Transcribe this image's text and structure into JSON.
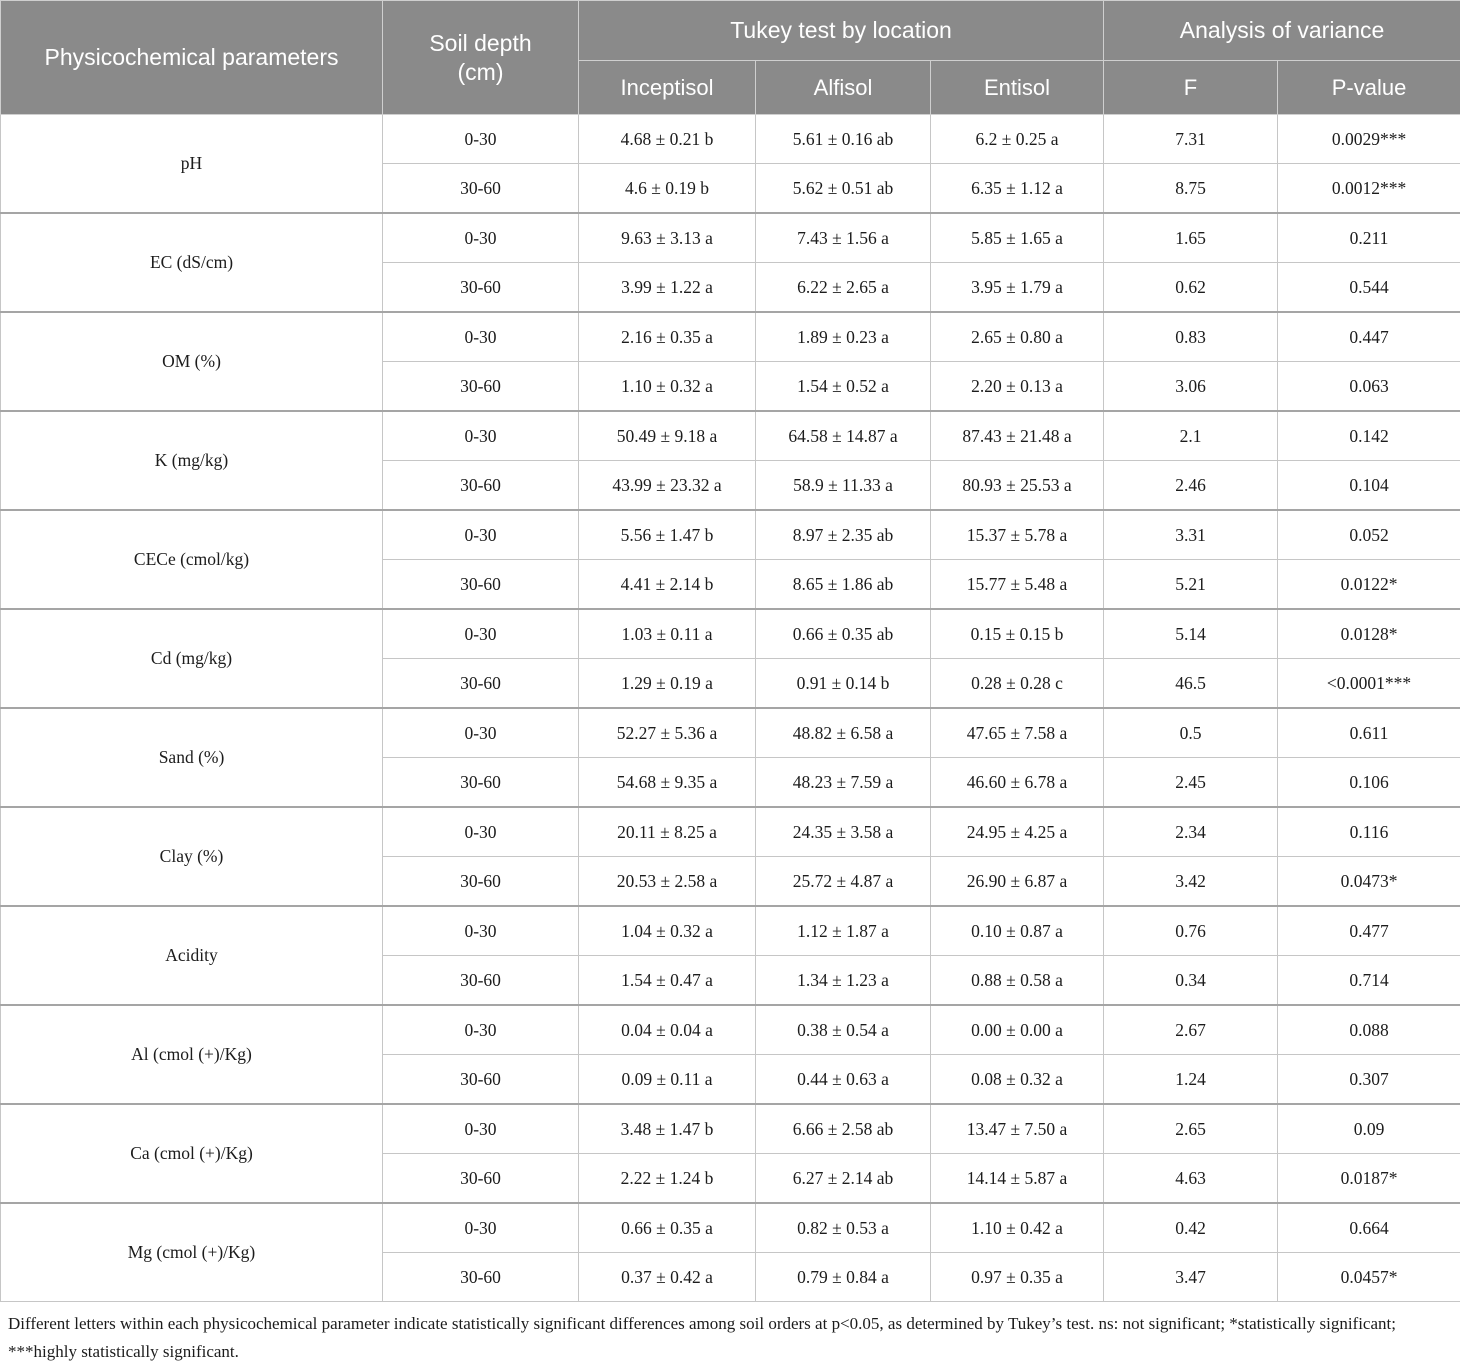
{
  "colors": {
    "header_bg": "#8a8a8a",
    "header_text": "#ffffff",
    "body_text": "#1c1c1c",
    "border_light": "#c6c6c6",
    "border_group": "#a5a5a5"
  },
  "table": {
    "header": {
      "parameters_label": "Physicochemical parameters",
      "soil_depth_label": "Soil depth (cm)",
      "tukey_group_label": "Tukey test by location",
      "anova_group_label": "Analysis of variance",
      "subcolumns": [
        "Inceptisol",
        "Alfisol",
        "Entisol",
        "F",
        "P-value"
      ]
    },
    "groups": [
      {
        "parameter": "pH",
        "rows": [
          {
            "depth": "0-30",
            "values": [
              "4.68 ± 0.21 b",
              "5.61 ± 0.16 ab",
              "6.2 ± 0.25 a",
              "7.31",
              "0.0029***"
            ]
          },
          {
            "depth": "30-60",
            "values": [
              "4.6 ± 0.19 b",
              "5.62 ± 0.51 ab",
              "6.35 ± 1.12 a",
              "8.75",
              "0.0012***"
            ]
          }
        ]
      },
      {
        "parameter": "EC (dS/cm)",
        "rows": [
          {
            "depth": "0-30",
            "values": [
              "9.63 ± 3.13 a",
              "7.43 ± 1.56 a",
              "5.85 ± 1.65 a",
              "1.65",
              "0.211"
            ]
          },
          {
            "depth": "30-60",
            "values": [
              "3.99 ± 1.22 a",
              "6.22 ± 2.65 a",
              "3.95 ± 1.79 a",
              "0.62",
              "0.544"
            ]
          }
        ]
      },
      {
        "parameter": "OM (%)",
        "rows": [
          {
            "depth": "0-30",
            "values": [
              "2.16 ± 0.35 a",
              "1.89 ± 0.23 a",
              "2.65 ± 0.80 a",
              "0.83",
              "0.447"
            ]
          },
          {
            "depth": "30-60",
            "values": [
              "1.10 ± 0.32 a",
              "1.54 ± 0.52 a",
              "2.20 ± 0.13 a",
              "3.06",
              "0.063"
            ]
          }
        ]
      },
      {
        "parameter": "K (mg/kg)",
        "rows": [
          {
            "depth": "0-30",
            "values": [
              "50.49 ± 9.18 a",
              "64.58 ± 14.87 a",
              "87.43 ± 21.48 a",
              "2.1",
              "0.142"
            ]
          },
          {
            "depth": "30-60",
            "values": [
              "43.99 ± 23.32 a",
              "58.9 ± 11.33 a",
              "80.93 ± 25.53 a",
              "2.46",
              "0.104"
            ]
          }
        ]
      },
      {
        "parameter": "CECe (cmol/kg)",
        "rows": [
          {
            "depth": "0-30",
            "values": [
              "5.56 ± 1.47 b",
              "8.97 ± 2.35 ab",
              "15.37 ± 5.78 a",
              "3.31",
              "0.052"
            ]
          },
          {
            "depth": "30-60",
            "values": [
              "4.41 ± 2.14 b",
              "8.65 ± 1.86 ab",
              "15.77 ± 5.48 a",
              "5.21",
              "0.0122*"
            ]
          }
        ]
      },
      {
        "parameter": "Cd (mg/kg)",
        "rows": [
          {
            "depth": "0-30",
            "values": [
              "1.03 ± 0.11 a",
              "0.66 ± 0.35 ab",
              "0.15 ± 0.15 b",
              "5.14",
              "0.0128*"
            ]
          },
          {
            "depth": "30-60",
            "values": [
              "1.29 ± 0.19 a",
              "0.91 ± 0.14 b",
              "0.28 ± 0.28 c",
              "46.5",
              "<0.0001***"
            ]
          }
        ]
      },
      {
        "parameter": "Sand (%)",
        "rows": [
          {
            "depth": "0-30",
            "values": [
              "52.27 ± 5.36 a",
              "48.82 ± 6.58 a",
              "47.65 ± 7.58 a",
              "0.5",
              "0.611"
            ]
          },
          {
            "depth": "30-60",
            "values": [
              "54.68 ± 9.35 a",
              "48.23 ± 7.59 a",
              "46.60 ± 6.78 a",
              "2.45",
              "0.106"
            ]
          }
        ]
      },
      {
        "parameter": "Clay (%)",
        "rows": [
          {
            "depth": "0-30",
            "values": [
              "20.11 ± 8.25 a",
              "24.35 ± 3.58 a",
              "24.95 ± 4.25 a",
              "2.34",
              "0.116"
            ]
          },
          {
            "depth": "30-60",
            "values": [
              "20.53 ± 2.58 a",
              "25.72 ± 4.87 a",
              "26.90 ± 6.87 a",
              "3.42",
              "0.0473*"
            ]
          }
        ]
      },
      {
        "parameter": "Acidity",
        "rows": [
          {
            "depth": "0-30",
            "values": [
              "1.04 ± 0.32 a",
              "1.12 ± 1.87 a",
              "0.10 ± 0.87 a",
              "0.76",
              "0.477"
            ]
          },
          {
            "depth": "30-60",
            "values": [
              "1.54 ± 0.47 a",
              "1.34 ± 1.23 a",
              "0.88 ± 0.58 a",
              "0.34",
              "0.714"
            ]
          }
        ]
      },
      {
        "parameter": "Al (cmol (+)/Kg)",
        "rows": [
          {
            "depth": "0-30",
            "values": [
              "0.04 ± 0.04 a",
              "0.38 ± 0.54 a",
              "0.00 ± 0.00 a",
              "2.67",
              "0.088"
            ]
          },
          {
            "depth": "30-60",
            "values": [
              "0.09 ± 0.11 a",
              "0.44 ± 0.63 a",
              "0.08 ± 0.32 a",
              "1.24",
              "0.307"
            ]
          }
        ]
      },
      {
        "parameter": "Ca (cmol (+)/Kg)",
        "rows": [
          {
            "depth": "0-30",
            "values": [
              "3.48 ± 1.47 b",
              "6.66 ± 2.58 ab",
              "13.47 ± 7.50 a",
              "2.65",
              "0.09"
            ]
          },
          {
            "depth": "30-60",
            "values": [
              "2.22 ± 1.24 b",
              "6.27 ± 2.14 ab",
              "14.14 ± 5.87 a",
              "4.63",
              "0.0187*"
            ]
          }
        ]
      },
      {
        "parameter": "Mg (cmol (+)/Kg)",
        "rows": [
          {
            "depth": "0-30",
            "values": [
              "0.66 ± 0.35 a",
              "0.82 ± 0.53 a",
              "1.10 ± 0.42 a",
              "0.42",
              "0.664"
            ]
          },
          {
            "depth": "30-60",
            "values": [
              "0.37 ± 0.42 a",
              "0.79 ± 0.84 a",
              "0.97 ± 0.35 a",
              "3.47",
              "0.0457*"
            ]
          }
        ]
      }
    ]
  },
  "footnote": "Different letters within each physicochemical parameter indicate statistically significant differences among soil orders at p<0.05, as determined by Tukey’s test. ns: not significant; *statistically significant; ***highly statistically significant."
}
